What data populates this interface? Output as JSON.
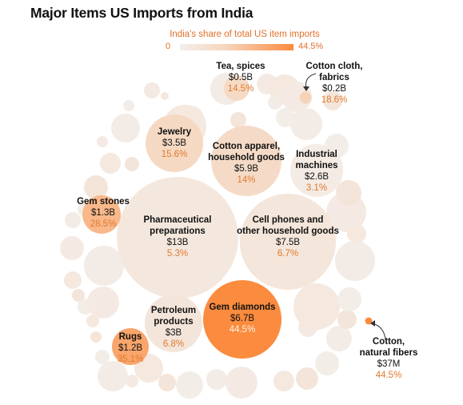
{
  "title": "Major Items US Imports from India",
  "legend": {
    "title": "India's share of total US item imports",
    "min_label": "0",
    "max_label": "44.5%",
    "colors": [
      "#f3efec",
      "#f6d6bd",
      "#fb8b3e"
    ]
  },
  "chart_data": {
    "type": "bubble",
    "title": "Major Items US Imports from India",
    "color_scale": {
      "label": "India's share of total US item imports",
      "min": 0,
      "max": 44.5
    },
    "items": [
      {
        "name": "Pharmaceutical\npreparations",
        "value": "$13B",
        "value_usd_bn": 13,
        "share_label": "5.3%",
        "share": 5.3
      },
      {
        "name": "Cell phones and\nother household goods",
        "value": "$7.5B",
        "value_usd_bn": 7.5,
        "share_label": "6.7%",
        "share": 6.7
      },
      {
        "name": "Gem diamonds",
        "value": "$6.7B",
        "value_usd_bn": 6.7,
        "share_label": "44.5%",
        "share": 44.5
      },
      {
        "name": "Cotton apparel,\nhousehold goods",
        "value": "$5.9B",
        "value_usd_bn": 5.9,
        "share_label": "14%",
        "share": 14
      },
      {
        "name": "Jewelry",
        "value": "$3.5B",
        "value_usd_bn": 3.5,
        "share_label": "15.6%",
        "share": 15.6
      },
      {
        "name": "Petroleum\nproducts",
        "value": "$3B",
        "value_usd_bn": 3,
        "share_label": "6.8%",
        "share": 6.8
      },
      {
        "name": "Industrial\nmachines",
        "value": "$2.6B",
        "value_usd_bn": 2.6,
        "share_label": "3.1%",
        "share": 3.1
      },
      {
        "name": "Gem stones",
        "value": "$1.3B",
        "value_usd_bn": 1.3,
        "share_label": "28.5%",
        "share": 28.5
      },
      {
        "name": "Rugs",
        "value": "$1.2B",
        "value_usd_bn": 1.2,
        "share_label": "35.1%",
        "share": 35.1
      },
      {
        "name": "Tea, spices",
        "value": "$0.5B",
        "value_usd_bn": 0.5,
        "share_label": "14.5%",
        "share": 14.5
      },
      {
        "name": "Cotton cloth,\nfabrics",
        "value": "$0.2B",
        "value_usd_bn": 0.2,
        "share_label": "18.6%",
        "share": 18.6
      },
      {
        "name": "Cotton,\nnatural fibers",
        "value": "$37M",
        "value_usd_bn": 0.037,
        "share_label": "44.5%",
        "share": 44.5
      }
    ]
  }
}
